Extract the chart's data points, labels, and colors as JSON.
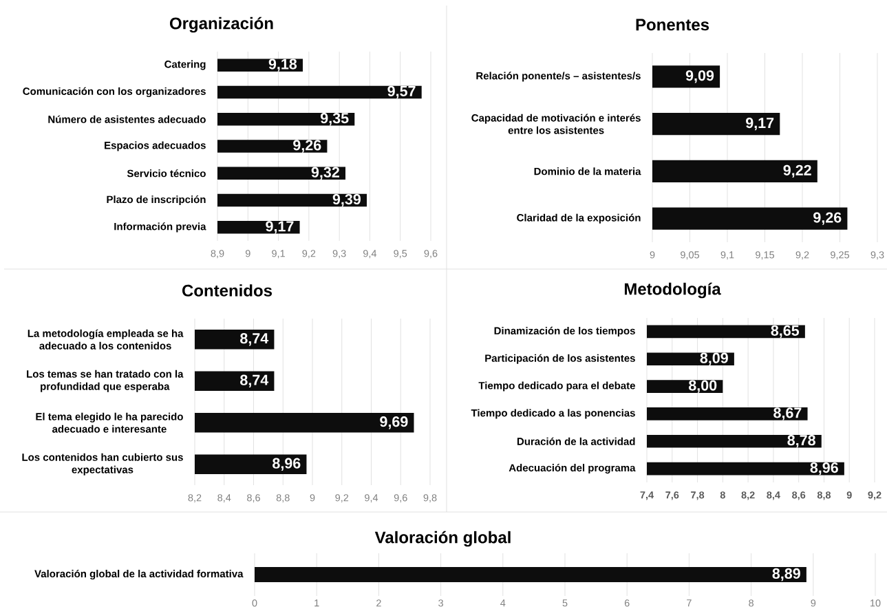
{
  "chart_data": [
    {
      "type": "bar",
      "orientation": "horizontal",
      "title": "Organización",
      "categories": [
        "Catering",
        "Comunicación con los organizadores",
        "Número de asistentes adecuado",
        "Espacios adecuados",
        "Servicio técnico",
        "Plazo de inscripción",
        "Información previa"
      ],
      "values": [
        9.18,
        9.57,
        9.35,
        9.26,
        9.32,
        9.39,
        9.17
      ],
      "value_labels": [
        "9,18",
        "9,57",
        "9,35",
        "9,26",
        "9,32",
        "9,39",
        "9,17"
      ],
      "color": "#0d0d0d",
      "xlim": [
        8.9,
        9.6
      ],
      "xticks": [
        {
          "value": 8.9,
          "label": "8,9"
        },
        9,
        {
          "value": 9.1,
          "label": "9,1"
        },
        {
          "value": 9.2,
          "label": "9,2"
        },
        {
          "value": 9.3,
          "label": "9,3"
        },
        {
          "value": 9.4,
          "label": "9,4"
        },
        {
          "value": 9.5,
          "label": "9,5"
        },
        {
          "value": 9.6,
          "label": "9,6"
        }
      ],
      "grid": "x"
    },
    {
      "type": "bar",
      "orientation": "horizontal",
      "title": "Ponentes",
      "categories": [
        "Relación ponente/s – asistentes/s",
        "Capacidad de motivación e interés entre los asistentes",
        "Dominio de la materia",
        "Claridad de la exposición"
      ],
      "values": [
        9.09,
        9.17,
        9.22,
        9.26
      ],
      "value_labels": [
        "9,09",
        "9,17",
        "9,22",
        "9,26"
      ],
      "color": "#0d0d0d",
      "xlim": [
        9,
        9.3
      ],
      "xticks": [
        9,
        {
          "value": 9.05,
          "label": "9,05"
        },
        {
          "value": 9.1,
          "label": "9,1"
        },
        {
          "value": 9.15,
          "label": "9,15"
        },
        {
          "value": 9.2,
          "label": "9,2"
        },
        {
          "value": 9.25,
          "label": "9,25"
        },
        {
          "value": 9.3,
          "label": "9,3"
        }
      ],
      "grid": "x"
    },
    {
      "type": "bar",
      "orientation": "horizontal",
      "title": "Contenidos",
      "categories": [
        "La metodología empleada se ha adecuado a los contenidos",
        "Los temas se han tratado con la profundidad que esperaba",
        "El tema elegido le ha parecido adecuado e interesante",
        "Los contenidos han cubierto sus expectativas"
      ],
      "values": [
        8.74,
        8.74,
        9.69,
        8.96
      ],
      "value_labels": [
        "8,74",
        "8,74",
        "9,69",
        "8,96"
      ],
      "color": "#0d0d0d",
      "xlim": [
        8.2,
        9.8
      ],
      "xticks": [
        {
          "value": 8.2,
          "label": "8,2"
        },
        {
          "value": 8.4,
          "label": "8,4"
        },
        {
          "value": 8.6,
          "label": "8,6"
        },
        {
          "value": 8.8,
          "label": "8,8"
        },
        9,
        {
          "value": 9.2,
          "label": "9,2"
        },
        {
          "value": 9.4,
          "label": "9,4"
        },
        {
          "value": 9.6,
          "label": "9,6"
        },
        {
          "value": 9.8,
          "label": "9,8"
        }
      ],
      "grid": "x"
    },
    {
      "type": "bar",
      "orientation": "horizontal",
      "title": "Metodología",
      "categories": [
        "Dinamización de los tiempos",
        "Participación de los asistentes",
        "Tiempo dedicado para el debate",
        "Tiempo dedicado a las ponencias",
        "Duración de la actividad",
        "Adecuación del programa"
      ],
      "values": [
        8.65,
        8.09,
        8.0,
        8.67,
        8.78,
        8.96
      ],
      "value_labels": [
        "8,65",
        "8,09",
        "8,00",
        "8,67",
        "8,78",
        "8,96"
      ],
      "color": "#0d0d0d",
      "xlim": [
        7.4,
        9.2
      ],
      "xticks": [
        {
          "value": 7.4,
          "label": "7,4"
        },
        {
          "value": 7.6,
          "label": "7,6"
        },
        {
          "value": 7.8,
          "label": "7,8"
        },
        8,
        {
          "value": 8.2,
          "label": "8,2"
        },
        {
          "value": 8.4,
          "label": "8,4"
        },
        {
          "value": 8.6,
          "label": "8,6"
        },
        {
          "value": 8.8,
          "label": "8,8"
        },
        9,
        {
          "value": 9.2,
          "label": "9,2"
        }
      ],
      "grid": "x"
    },
    {
      "type": "bar",
      "orientation": "horizontal",
      "title": "Valoración global",
      "categories": [
        "Valoración global de la actividad formativa"
      ],
      "values": [
        8.89
      ],
      "value_labels": [
        "8,89"
      ],
      "color": "#0d0d0d",
      "xlim": [
        0,
        10
      ],
      "xticks": [
        0,
        1,
        2,
        3,
        4,
        5,
        6,
        7,
        8,
        9,
        10
      ],
      "grid": "x"
    }
  ]
}
